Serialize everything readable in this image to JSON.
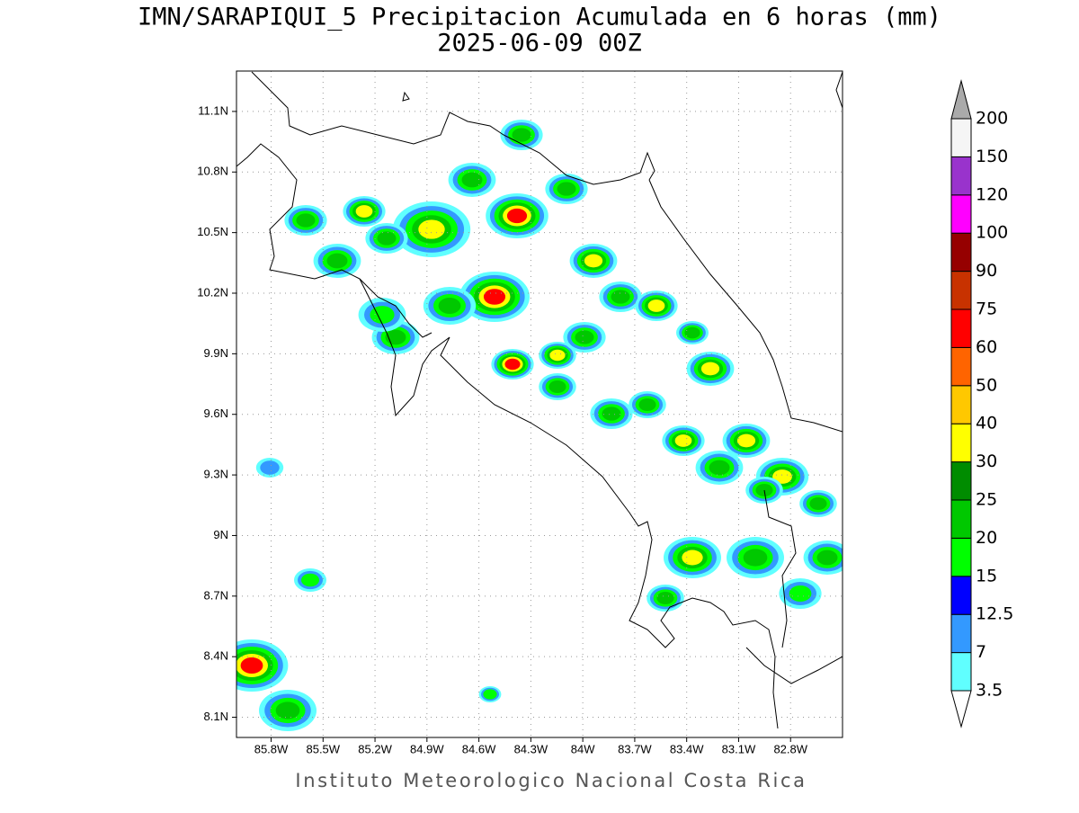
{
  "map": {
    "title": "IMN/SARAPIQUI_5 Precipitacion Acumulada en 6 horas (mm)",
    "subtitle": "2025-06-09 00Z",
    "footer": "Instituto Meteorologico Nacional Costa Rica",
    "xlim": [
      -86.0,
      -82.5
    ],
    "ylim": [
      8.0,
      11.3
    ],
    "xticks": [
      {
        "value": -85.8,
        "label": "85.8W"
      },
      {
        "value": -85.5,
        "label": "85.5W"
      },
      {
        "value": -85.2,
        "label": "85.2W"
      },
      {
        "value": -84.9,
        "label": "84.9W"
      },
      {
        "value": -84.6,
        "label": "84.6W"
      },
      {
        "value": -84.3,
        "label": "84.3W"
      },
      {
        "value": -84.0,
        "label": "84W"
      },
      {
        "value": -83.7,
        "label": "83.7W"
      },
      {
        "value": -83.4,
        "label": "83.4W"
      },
      {
        "value": -83.1,
        "label": "83.1W"
      },
      {
        "value": -82.8,
        "label": "82.8W"
      }
    ],
    "yticks": [
      {
        "value": 8.1,
        "label": "8.1N"
      },
      {
        "value": 8.4,
        "label": "8.4N"
      },
      {
        "value": 8.7,
        "label": "8.7N"
      },
      {
        "value": 9.0,
        "label": "9N"
      },
      {
        "value": 9.3,
        "label": "9.3N"
      },
      {
        "value": 9.6,
        "label": "9.6N"
      },
      {
        "value": 9.9,
        "label": "9.9N"
      },
      {
        "value": 10.2,
        "label": "10.2N"
      },
      {
        "value": 10.5,
        "label": "10.5N"
      },
      {
        "value": 10.8,
        "label": "10.8N"
      },
      {
        "value": 11.1,
        "label": "11.1N"
      }
    ],
    "grid": true
  },
  "colorbar": {
    "levels": [
      3.5,
      7,
      12.5,
      15,
      20,
      25,
      30,
      40,
      50,
      60,
      75,
      90,
      100,
      120,
      150,
      200
    ],
    "colors": [
      "#60ffff",
      "#3399ff",
      "#0000ff",
      "#00ff00",
      "#00c800",
      "#008c00",
      "#ffff00",
      "#ffc800",
      "#ff6400",
      "#ff0000",
      "#c83200",
      "#960000",
      "#ff00ff",
      "#9933cc",
      "#f5f5f5"
    ],
    "under_color": "#ffffff",
    "over_color": "#aaaaaa"
  }
}
